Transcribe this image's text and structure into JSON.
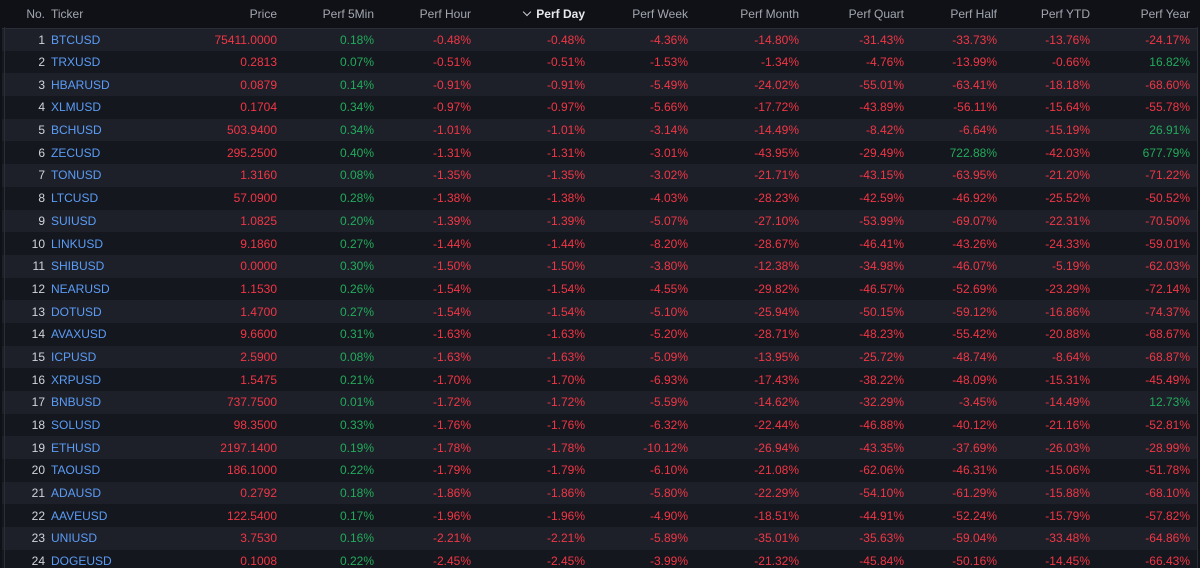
{
  "colors": {
    "negative": "#f23645",
    "positive": "#22ab5b",
    "ticker": "#5b9cf6"
  },
  "columns": [
    {
      "key": "no",
      "label": "No."
    },
    {
      "key": "ticker",
      "label": "Ticker"
    },
    {
      "key": "price",
      "label": "Price"
    },
    {
      "key": "perf_5min",
      "label": "Perf 5Min"
    },
    {
      "key": "perf_hour",
      "label": "Perf Hour"
    },
    {
      "key": "perf_day",
      "label": "Perf Day",
      "sorted": "desc"
    },
    {
      "key": "perf_week",
      "label": "Perf Week"
    },
    {
      "key": "perf_month",
      "label": "Perf Month"
    },
    {
      "key": "perf_quart",
      "label": "Perf Quart"
    },
    {
      "key": "perf_half",
      "label": "Perf Half"
    },
    {
      "key": "perf_ytd",
      "label": "Perf YTD"
    },
    {
      "key": "perf_year",
      "label": "Perf Year"
    }
  ],
  "rows": [
    {
      "no": "1",
      "ticker": "BTCUSD",
      "price": "75411.0000",
      "perf_5min": "0.18%",
      "perf_hour": "-0.48%",
      "perf_day": "-0.48%",
      "perf_week": "-4.36%",
      "perf_month": "-14.80%",
      "perf_quart": "-31.43%",
      "perf_half": "-33.73%",
      "perf_ytd": "-13.76%",
      "perf_year": "-24.17%"
    },
    {
      "no": "2",
      "ticker": "TRXUSD",
      "price": "0.2813",
      "perf_5min": "0.07%",
      "perf_hour": "-0.51%",
      "perf_day": "-0.51%",
      "perf_week": "-1.53%",
      "perf_month": "-1.34%",
      "perf_quart": "-4.76%",
      "perf_half": "-13.99%",
      "perf_ytd": "-0.66%",
      "perf_year": "16.82%"
    },
    {
      "no": "3",
      "ticker": "HBARUSD",
      "price": "0.0879",
      "perf_5min": "0.14%",
      "perf_hour": "-0.91%",
      "perf_day": "-0.91%",
      "perf_week": "-5.49%",
      "perf_month": "-24.02%",
      "perf_quart": "-55.01%",
      "perf_half": "-63.41%",
      "perf_ytd": "-18.18%",
      "perf_year": "-68.60%"
    },
    {
      "no": "4",
      "ticker": "XLMUSD",
      "price": "0.1704",
      "perf_5min": "0.34%",
      "perf_hour": "-0.97%",
      "perf_day": "-0.97%",
      "perf_week": "-5.66%",
      "perf_month": "-17.72%",
      "perf_quart": "-43.89%",
      "perf_half": "-56.11%",
      "perf_ytd": "-15.64%",
      "perf_year": "-55.78%"
    },
    {
      "no": "5",
      "ticker": "BCHUSD",
      "price": "503.9400",
      "perf_5min": "0.34%",
      "perf_hour": "-1.01%",
      "perf_day": "-1.01%",
      "perf_week": "-3.14%",
      "perf_month": "-14.49%",
      "perf_quart": "-8.42%",
      "perf_half": "-6.64%",
      "perf_ytd": "-15.19%",
      "perf_year": "26.91%"
    },
    {
      "no": "6",
      "ticker": "ZECUSD",
      "price": "295.2500",
      "perf_5min": "0.40%",
      "perf_hour": "-1.31%",
      "perf_day": "-1.31%",
      "perf_week": "-3.01%",
      "perf_month": "-43.95%",
      "perf_quart": "-29.49%",
      "perf_half": "722.88%",
      "perf_ytd": "-42.03%",
      "perf_year": "677.79%"
    },
    {
      "no": "7",
      "ticker": "TONUSD",
      "price": "1.3160",
      "perf_5min": "0.08%",
      "perf_hour": "-1.35%",
      "perf_day": "-1.35%",
      "perf_week": "-3.02%",
      "perf_month": "-21.71%",
      "perf_quart": "-43.15%",
      "perf_half": "-63.95%",
      "perf_ytd": "-21.20%",
      "perf_year": "-71.22%"
    },
    {
      "no": "8",
      "ticker": "LTCUSD",
      "price": "57.0900",
      "perf_5min": "0.28%",
      "perf_hour": "-1.38%",
      "perf_day": "-1.38%",
      "perf_week": "-4.03%",
      "perf_month": "-28.23%",
      "perf_quart": "-42.59%",
      "perf_half": "-46.92%",
      "perf_ytd": "-25.52%",
      "perf_year": "-50.52%"
    },
    {
      "no": "9",
      "ticker": "SUIUSD",
      "price": "1.0825",
      "perf_5min": "0.20%",
      "perf_hour": "-1.39%",
      "perf_day": "-1.39%",
      "perf_week": "-5.07%",
      "perf_month": "-27.10%",
      "perf_quart": "-53.99%",
      "perf_half": "-69.07%",
      "perf_ytd": "-22.31%",
      "perf_year": "-70.50%"
    },
    {
      "no": "10",
      "ticker": "LINKUSD",
      "price": "9.1860",
      "perf_5min": "0.27%",
      "perf_hour": "-1.44%",
      "perf_day": "-1.44%",
      "perf_week": "-8.20%",
      "perf_month": "-28.67%",
      "perf_quart": "-46.41%",
      "perf_half": "-43.26%",
      "perf_ytd": "-24.33%",
      "perf_year": "-59.01%"
    },
    {
      "no": "11",
      "ticker": "SHIBUSD",
      "price": "0.0000",
      "perf_5min": "0.30%",
      "perf_hour": "-1.50%",
      "perf_day": "-1.50%",
      "perf_week": "-3.80%",
      "perf_month": "-12.38%",
      "perf_quart": "-34.98%",
      "perf_half": "-46.07%",
      "perf_ytd": "-5.19%",
      "perf_year": "-62.03%"
    },
    {
      "no": "12",
      "ticker": "NEARUSD",
      "price": "1.1530",
      "perf_5min": "0.26%",
      "perf_hour": "-1.54%",
      "perf_day": "-1.54%",
      "perf_week": "-4.55%",
      "perf_month": "-29.82%",
      "perf_quart": "-46.57%",
      "perf_half": "-52.69%",
      "perf_ytd": "-23.29%",
      "perf_year": "-72.14%"
    },
    {
      "no": "13",
      "ticker": "DOTUSD",
      "price": "1.4700",
      "perf_5min": "0.27%",
      "perf_hour": "-1.54%",
      "perf_day": "-1.54%",
      "perf_week": "-5.10%",
      "perf_month": "-25.94%",
      "perf_quart": "-50.15%",
      "perf_half": "-59.12%",
      "perf_ytd": "-16.86%",
      "perf_year": "-74.37%"
    },
    {
      "no": "14",
      "ticker": "AVAXUSD",
      "price": "9.6600",
      "perf_5min": "0.31%",
      "perf_hour": "-1.63%",
      "perf_day": "-1.63%",
      "perf_week": "-5.20%",
      "perf_month": "-28.71%",
      "perf_quart": "-48.23%",
      "perf_half": "-55.42%",
      "perf_ytd": "-20.88%",
      "perf_year": "-68.67%"
    },
    {
      "no": "15",
      "ticker": "ICPUSD",
      "price": "2.5900",
      "perf_5min": "0.08%",
      "perf_hour": "-1.63%",
      "perf_day": "-1.63%",
      "perf_week": "-5.09%",
      "perf_month": "-13.95%",
      "perf_quart": "-25.72%",
      "perf_half": "-48.74%",
      "perf_ytd": "-8.64%",
      "perf_year": "-68.87%"
    },
    {
      "no": "16",
      "ticker": "XRPUSD",
      "price": "1.5475",
      "perf_5min": "0.21%",
      "perf_hour": "-1.70%",
      "perf_day": "-1.70%",
      "perf_week": "-6.93%",
      "perf_month": "-17.43%",
      "perf_quart": "-38.22%",
      "perf_half": "-48.09%",
      "perf_ytd": "-15.31%",
      "perf_year": "-45.49%"
    },
    {
      "no": "17",
      "ticker": "BNBUSD",
      "price": "737.7500",
      "perf_5min": "0.01%",
      "perf_hour": "-1.72%",
      "perf_day": "-1.72%",
      "perf_week": "-5.59%",
      "perf_month": "-14.62%",
      "perf_quart": "-32.29%",
      "perf_half": "-3.45%",
      "perf_ytd": "-14.49%",
      "perf_year": "12.73%"
    },
    {
      "no": "18",
      "ticker": "SOLUSD",
      "price": "98.3500",
      "perf_5min": "0.33%",
      "perf_hour": "-1.76%",
      "perf_day": "-1.76%",
      "perf_week": "-6.32%",
      "perf_month": "-22.44%",
      "perf_quart": "-46.88%",
      "perf_half": "-40.12%",
      "perf_ytd": "-21.16%",
      "perf_year": "-52.81%"
    },
    {
      "no": "19",
      "ticker": "ETHUSD",
      "price": "2197.1400",
      "perf_5min": "0.19%",
      "perf_hour": "-1.78%",
      "perf_day": "-1.78%",
      "perf_week": "-10.12%",
      "perf_month": "-26.94%",
      "perf_quart": "-43.35%",
      "perf_half": "-37.69%",
      "perf_ytd": "-26.03%",
      "perf_year": "-28.99%"
    },
    {
      "no": "20",
      "ticker": "TAOUSD",
      "price": "186.1000",
      "perf_5min": "0.22%",
      "perf_hour": "-1.79%",
      "perf_day": "-1.79%",
      "perf_week": "-6.10%",
      "perf_month": "-21.08%",
      "perf_quart": "-62.06%",
      "perf_half": "-46.31%",
      "perf_ytd": "-15.06%",
      "perf_year": "-51.78%"
    },
    {
      "no": "21",
      "ticker": "ADAUSD",
      "price": "0.2792",
      "perf_5min": "0.18%",
      "perf_hour": "-1.86%",
      "perf_day": "-1.86%",
      "perf_week": "-5.80%",
      "perf_month": "-22.29%",
      "perf_quart": "-54.10%",
      "perf_half": "-61.29%",
      "perf_ytd": "-15.88%",
      "perf_year": "-68.10%"
    },
    {
      "no": "22",
      "ticker": "AAVEUSD",
      "price": "122.5400",
      "perf_5min": "0.17%",
      "perf_hour": "-1.96%",
      "perf_day": "-1.96%",
      "perf_week": "-4.90%",
      "perf_month": "-18.51%",
      "perf_quart": "-44.91%",
      "perf_half": "-52.24%",
      "perf_ytd": "-15.79%",
      "perf_year": "-57.82%"
    },
    {
      "no": "23",
      "ticker": "UNIUSD",
      "price": "3.7530",
      "perf_5min": "0.16%",
      "perf_hour": "-2.21%",
      "perf_day": "-2.21%",
      "perf_week": "-5.89%",
      "perf_month": "-35.01%",
      "perf_quart": "-35.63%",
      "perf_half": "-59.04%",
      "perf_ytd": "-33.48%",
      "perf_year": "-64.86%"
    },
    {
      "no": "24",
      "ticker": "DOGEUSD",
      "price": "0.1008",
      "perf_5min": "0.22%",
      "perf_hour": "-2.45%",
      "perf_day": "-2.45%",
      "perf_week": "-3.99%",
      "perf_month": "-21.32%",
      "perf_quart": "-45.84%",
      "perf_half": "-50.16%",
      "perf_ytd": "-14.45%",
      "perf_year": "-66.43%"
    }
  ]
}
